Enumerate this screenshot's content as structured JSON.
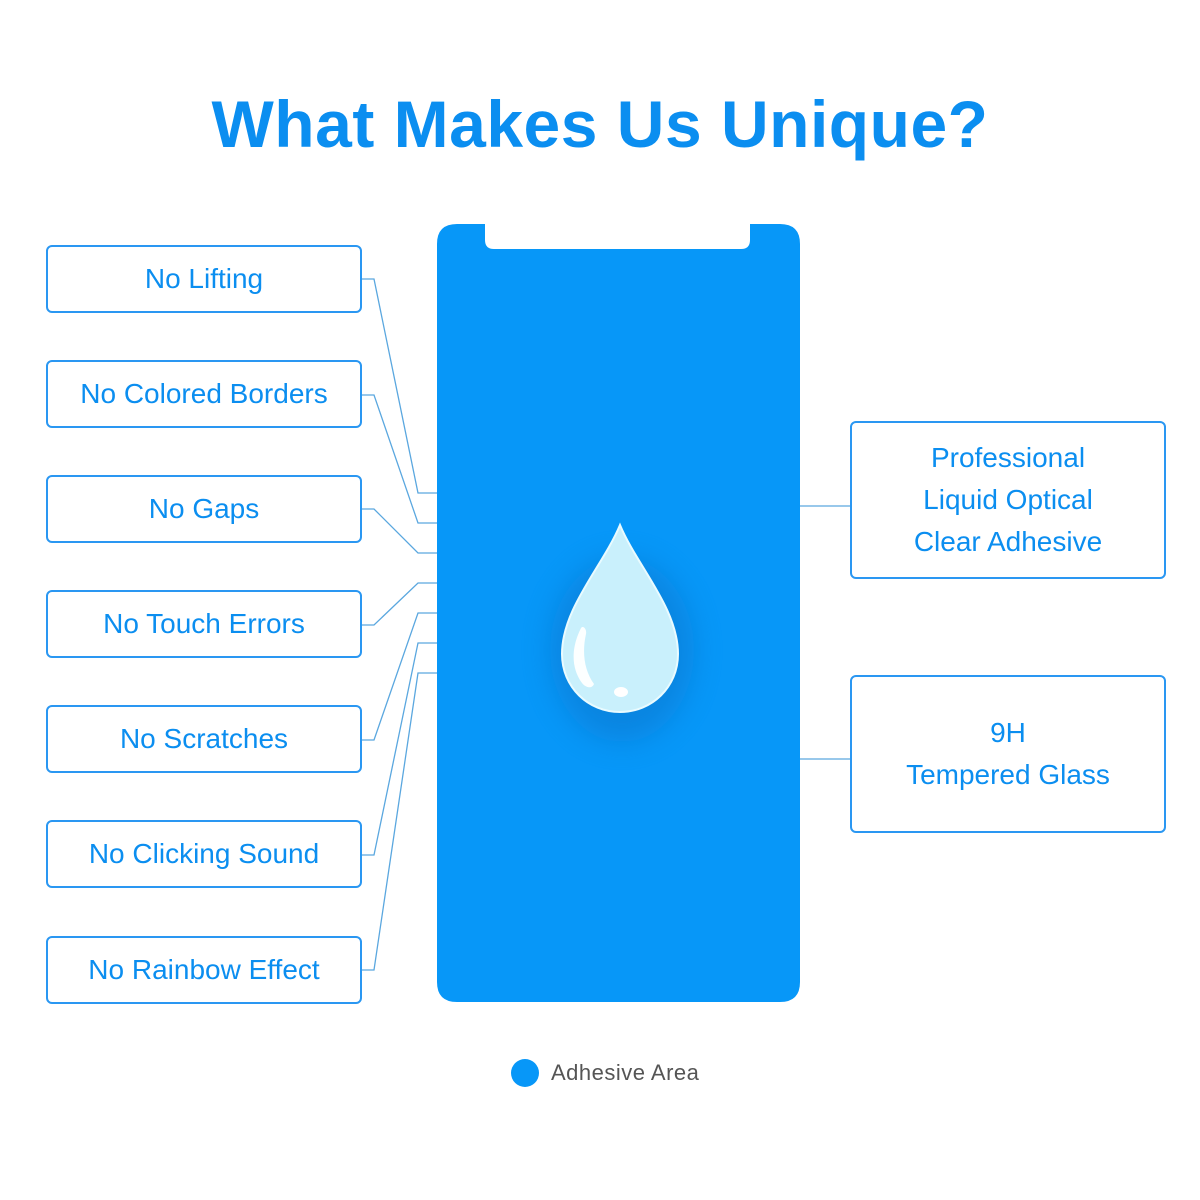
{
  "title": "What Makes Us Unique?",
  "left_features": [
    "No Lifting",
    "No Colored Borders",
    "No Gaps",
    "No Touch Errors",
    "No Scratches",
    "No Clicking Sound",
    "No Rainbow Effect"
  ],
  "right_features": [
    [
      "Professional",
      "Liquid Optical",
      "Clear Adhesive"
    ],
    [
      "9H",
      "Tempered Glass"
    ]
  ],
  "legend": {
    "label": "Adhesive Area"
  },
  "colors": {
    "accent": "#0b8ef0",
    "phone": "#0797f8",
    "box_border": "#2a97f2",
    "drop_fill": "#c9f0fc",
    "connector": "#5aa7df"
  },
  "icons": {
    "center": "water-drop-icon"
  }
}
